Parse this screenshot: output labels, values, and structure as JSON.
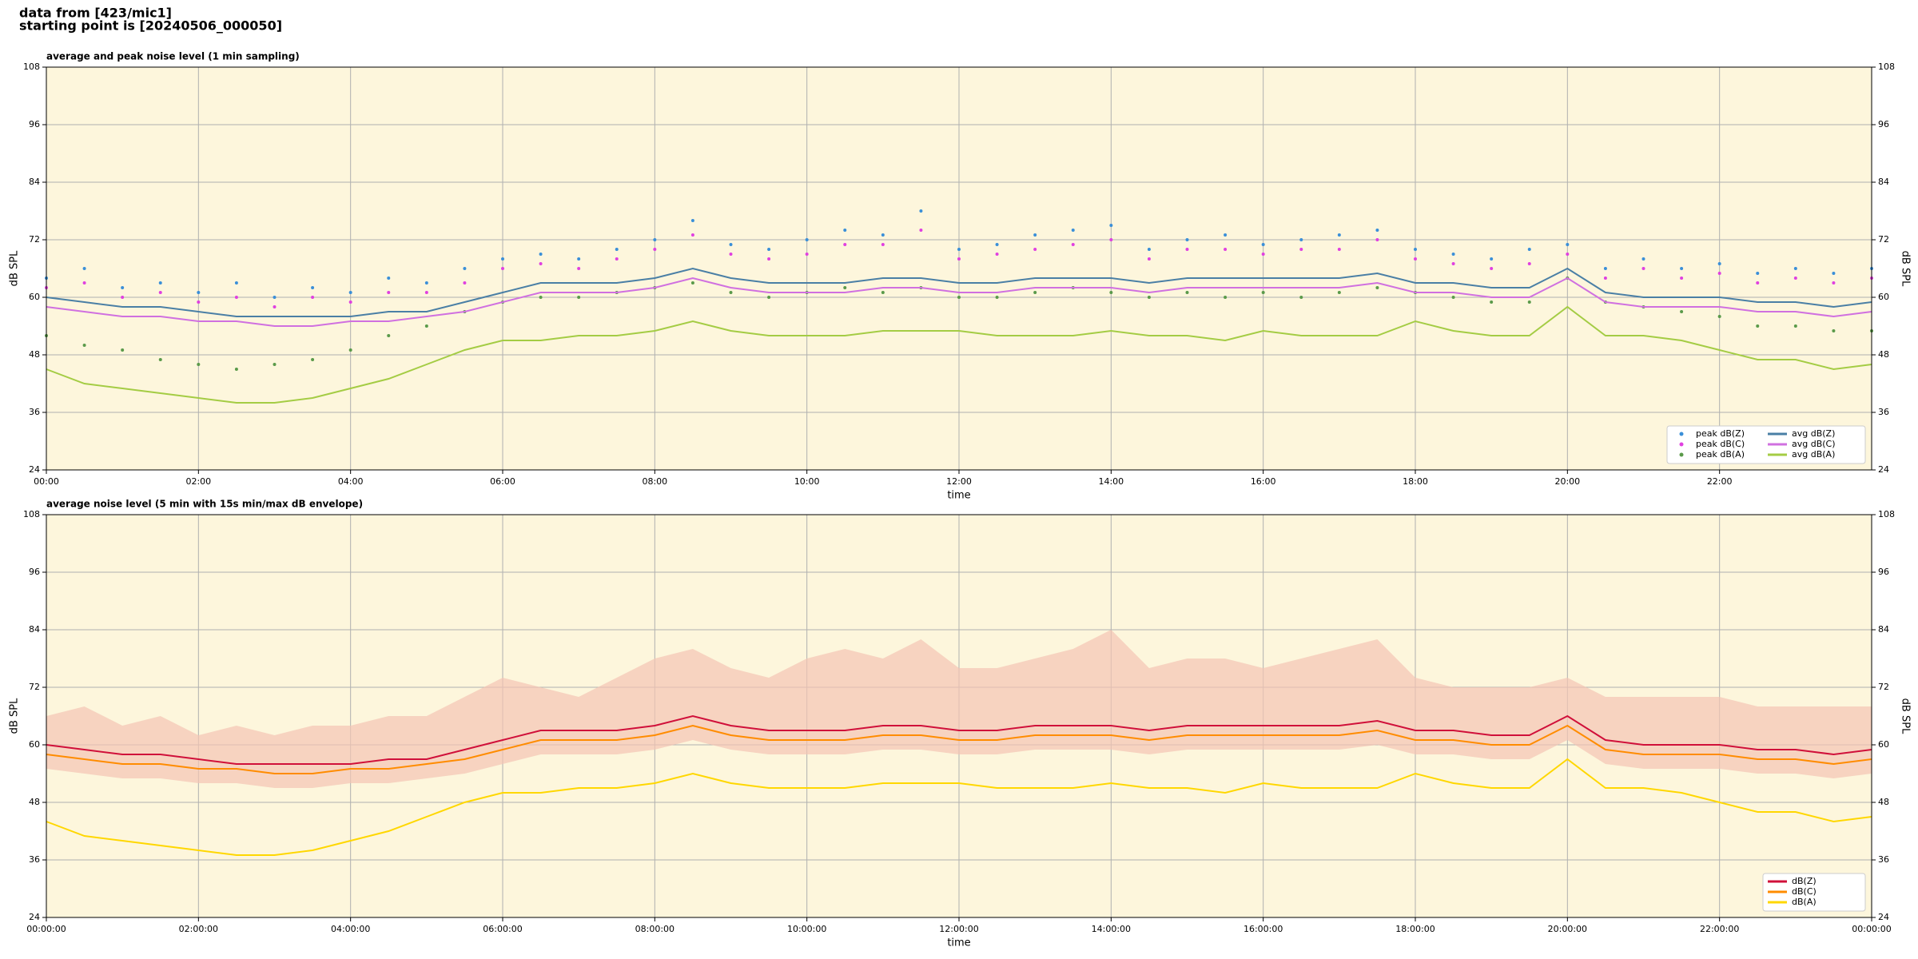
{
  "header": {
    "line1": "data from [423/mic1]",
    "line2": "starting point is [20240506_000050]"
  },
  "chart_data": [
    {
      "type": "line",
      "title": "average and peak noise level (1 min sampling)",
      "x_label": "time",
      "y_label": "dB SPL",
      "y2_label": "dB SPL",
      "x": [
        0,
        0.5,
        1,
        1.5,
        2,
        2.5,
        3,
        3.5,
        4,
        4.5,
        5,
        5.5,
        6,
        6.5,
        7,
        7.5,
        8,
        8.5,
        9,
        9.5,
        10,
        10.5,
        11,
        11.5,
        12,
        12.5,
        13,
        13.5,
        14,
        14.5,
        15,
        15.5,
        16,
        16.5,
        17,
        17.5,
        18,
        18.5,
        19,
        19.5,
        20,
        20.5,
        21,
        21.5,
        22,
        22.5,
        23,
        23.5,
        24
      ],
      "xlim": [
        0,
        24
      ],
      "xticks": [
        {
          "value": 0,
          "label": "00:00"
        },
        {
          "value": 2,
          "label": "02:00"
        },
        {
          "value": 4,
          "label": "04:00"
        },
        {
          "value": 6,
          "label": "06:00"
        },
        {
          "value": 8,
          "label": "08:00"
        },
        {
          "value": 10,
          "label": "10:00"
        },
        {
          "value": 12,
          "label": "12:00"
        },
        {
          "value": 14,
          "label": "14:00"
        },
        {
          "value": 16,
          "label": "16:00"
        },
        {
          "value": 18,
          "label": "18:00"
        },
        {
          "value": 20,
          "label": "20:00"
        },
        {
          "value": 22,
          "label": "22:00"
        }
      ],
      "ylim": [
        24,
        108
      ],
      "yticks": [
        24,
        36,
        48,
        60,
        72,
        84,
        96,
        108
      ],
      "grid": true,
      "legend_loc": "lower right",
      "legend_columns": 2,
      "background": "#fdf6dc",
      "series": [
        {
          "name": "peak dB(Z)",
          "kind": "scatter",
          "color": "#3a8fd8",
          "values": [
            64,
            66,
            62,
            63,
            61,
            63,
            60,
            62,
            61,
            64,
            63,
            66,
            68,
            69,
            68,
            70,
            72,
            76,
            71,
            70,
            72,
            74,
            73,
            78,
            70,
            71,
            73,
            74,
            75,
            70,
            72,
            73,
            71,
            72,
            73,
            74,
            70,
            69,
            68,
            70,
            71,
            66,
            68,
            66,
            67,
            65,
            66,
            65,
            66
          ]
        },
        {
          "name": "peak dB(C)",
          "kind": "scatter",
          "color": "#e040e0",
          "values": [
            62,
            63,
            60,
            61,
            59,
            60,
            58,
            60,
            59,
            61,
            61,
            63,
            66,
            67,
            66,
            68,
            70,
            73,
            69,
            68,
            69,
            71,
            71,
            74,
            68,
            69,
            70,
            71,
            72,
            68,
            70,
            70,
            69,
            70,
            70,
            72,
            68,
            67,
            66,
            67,
            69,
            64,
            66,
            64,
            65,
            63,
            64,
            63,
            64
          ]
        },
        {
          "name": "peak dB(A)",
          "kind": "scatter",
          "color": "#5a9a4a",
          "values": [
            52,
            50,
            49,
            47,
            46,
            45,
            46,
            47,
            49,
            52,
            54,
            57,
            59,
            60,
            60,
            61,
            62,
            63,
            61,
            60,
            61,
            62,
            61,
            62,
            60,
            60,
            61,
            62,
            61,
            60,
            61,
            60,
            61,
            60,
            61,
            62,
            61,
            60,
            59,
            59,
            64,
            59,
            58,
            57,
            56,
            54,
            54,
            53,
            53
          ]
        },
        {
          "name": "avg dB(Z)",
          "kind": "line",
          "color": "#4a7fa5",
          "values": [
            60,
            59,
            58,
            58,
            57,
            56,
            56,
            56,
            56,
            57,
            57,
            59,
            61,
            63,
            63,
            63,
            64,
            66,
            64,
            63,
            63,
            63,
            64,
            64,
            63,
            63,
            64,
            64,
            64,
            63,
            64,
            64,
            64,
            64,
            64,
            65,
            63,
            63,
            62,
            62,
            66,
            61,
            60,
            60,
            60,
            59,
            59,
            58,
            59
          ]
        },
        {
          "name": "avg dB(C)",
          "kind": "line",
          "color": "#d070e0",
          "values": [
            58,
            57,
            56,
            56,
            55,
            55,
            54,
            54,
            55,
            55,
            56,
            57,
            59,
            61,
            61,
            61,
            62,
            64,
            62,
            61,
            61,
            61,
            62,
            62,
            61,
            61,
            62,
            62,
            62,
            61,
            62,
            62,
            62,
            62,
            62,
            63,
            61,
            61,
            60,
            60,
            64,
            59,
            58,
            58,
            58,
            57,
            57,
            56,
            57
          ]
        },
        {
          "name": "avg dB(A)",
          "kind": "line",
          "color": "#a4cc44",
          "values": [
            45,
            42,
            41,
            40,
            39,
            38,
            38,
            39,
            41,
            43,
            46,
            49,
            51,
            51,
            52,
            52,
            53,
            55,
            53,
            52,
            52,
            52,
            53,
            53,
            53,
            52,
            52,
            52,
            53,
            52,
            52,
            51,
            53,
            52,
            52,
            52,
            55,
            53,
            52,
            52,
            58,
            52,
            52,
            51,
            49,
            47,
            47,
            45,
            46
          ]
        }
      ]
    },
    {
      "type": "line",
      "title": "average noise level (5 min with 15s min/max dB envelope)",
      "x_label": "time",
      "y_label": "dB SPL",
      "y2_label": "dB SPL",
      "x": [
        0,
        0.5,
        1,
        1.5,
        2,
        2.5,
        3,
        3.5,
        4,
        4.5,
        5,
        5.5,
        6,
        6.5,
        7,
        7.5,
        8,
        8.5,
        9,
        9.5,
        10,
        10.5,
        11,
        11.5,
        12,
        12.5,
        13,
        13.5,
        14,
        14.5,
        15,
        15.5,
        16,
        16.5,
        17,
        17.5,
        18,
        18.5,
        19,
        19.5,
        20,
        20.5,
        21,
        21.5,
        22,
        22.5,
        23,
        23.5,
        24
      ],
      "xlim": [
        0,
        24
      ],
      "xticks": [
        {
          "value": 0,
          "label": "00:00:00"
        },
        {
          "value": 2,
          "label": "02:00:00"
        },
        {
          "value": 4,
          "label": "04:00:00"
        },
        {
          "value": 6,
          "label": "06:00:00"
        },
        {
          "value": 8,
          "label": "08:00:00"
        },
        {
          "value": 10,
          "label": "10:00:00"
        },
        {
          "value": 12,
          "label": "12:00:00"
        },
        {
          "value": 14,
          "label": "14:00:00"
        },
        {
          "value": 16,
          "label": "16:00:00"
        },
        {
          "value": 18,
          "label": "18:00:00"
        },
        {
          "value": 20,
          "label": "20:00:00"
        },
        {
          "value": 22,
          "label": "22:00:00"
        },
        {
          "value": 24,
          "label": "00:00:00"
        }
      ],
      "ylim": [
        24,
        108
      ],
      "yticks": [
        24,
        36,
        48,
        60,
        72,
        84,
        96,
        108
      ],
      "grid": true,
      "legend_loc": "lower right",
      "legend_columns": 1,
      "background": "#fdf6dc",
      "envelope": {
        "color": "#f4c4b4",
        "low": [
          55,
          54,
          53,
          53,
          52,
          52,
          51,
          51,
          52,
          52,
          53,
          54,
          56,
          58,
          58,
          58,
          59,
          61,
          59,
          58,
          58,
          58,
          59,
          59,
          58,
          58,
          59,
          59,
          59,
          58,
          59,
          59,
          59,
          59,
          59,
          60,
          58,
          58,
          57,
          57,
          61,
          56,
          55,
          55,
          55,
          54,
          54,
          53,
          54
        ],
        "high": [
          66,
          68,
          64,
          66,
          62,
          64,
          62,
          64,
          64,
          66,
          66,
          70,
          74,
          72,
          70,
          74,
          78,
          80,
          76,
          74,
          78,
          80,
          78,
          82,
          76,
          76,
          78,
          80,
          84,
          76,
          78,
          78,
          76,
          78,
          80,
          82,
          74,
          72,
          72,
          72,
          74,
          70,
          70,
          70,
          70,
          68,
          68,
          68,
          68
        ]
      },
      "series": [
        {
          "name": "dB(Z)",
          "kind": "line",
          "color": "#d0103a",
          "values": [
            60,
            59,
            58,
            58,
            57,
            56,
            56,
            56,
            56,
            57,
            57,
            59,
            61,
            63,
            63,
            63,
            64,
            66,
            64,
            63,
            63,
            63,
            64,
            64,
            63,
            63,
            64,
            64,
            64,
            63,
            64,
            64,
            64,
            64,
            64,
            65,
            63,
            63,
            62,
            62,
            66,
            61,
            60,
            60,
            60,
            59,
            59,
            58,
            59
          ]
        },
        {
          "name": "dB(C)",
          "kind": "line",
          "color": "#ff8c00",
          "values": [
            58,
            57,
            56,
            56,
            55,
            55,
            54,
            54,
            55,
            55,
            56,
            57,
            59,
            61,
            61,
            61,
            62,
            64,
            62,
            61,
            61,
            61,
            62,
            62,
            61,
            61,
            62,
            62,
            62,
            61,
            62,
            62,
            62,
            62,
            62,
            63,
            61,
            61,
            60,
            60,
            64,
            59,
            58,
            58,
            58,
            57,
            57,
            56,
            57
          ]
        },
        {
          "name": "dB(A)",
          "kind": "line",
          "color": "#ffd700",
          "values": [
            44,
            41,
            40,
            39,
            38,
            37,
            37,
            38,
            40,
            42,
            45,
            48,
            50,
            50,
            51,
            51,
            52,
            54,
            52,
            51,
            51,
            51,
            52,
            52,
            52,
            51,
            51,
            51,
            52,
            51,
            51,
            50,
            52,
            51,
            51,
            51,
            54,
            52,
            51,
            51,
            57,
            51,
            51,
            50,
            48,
            46,
            46,
            44,
            45
          ]
        }
      ]
    }
  ]
}
